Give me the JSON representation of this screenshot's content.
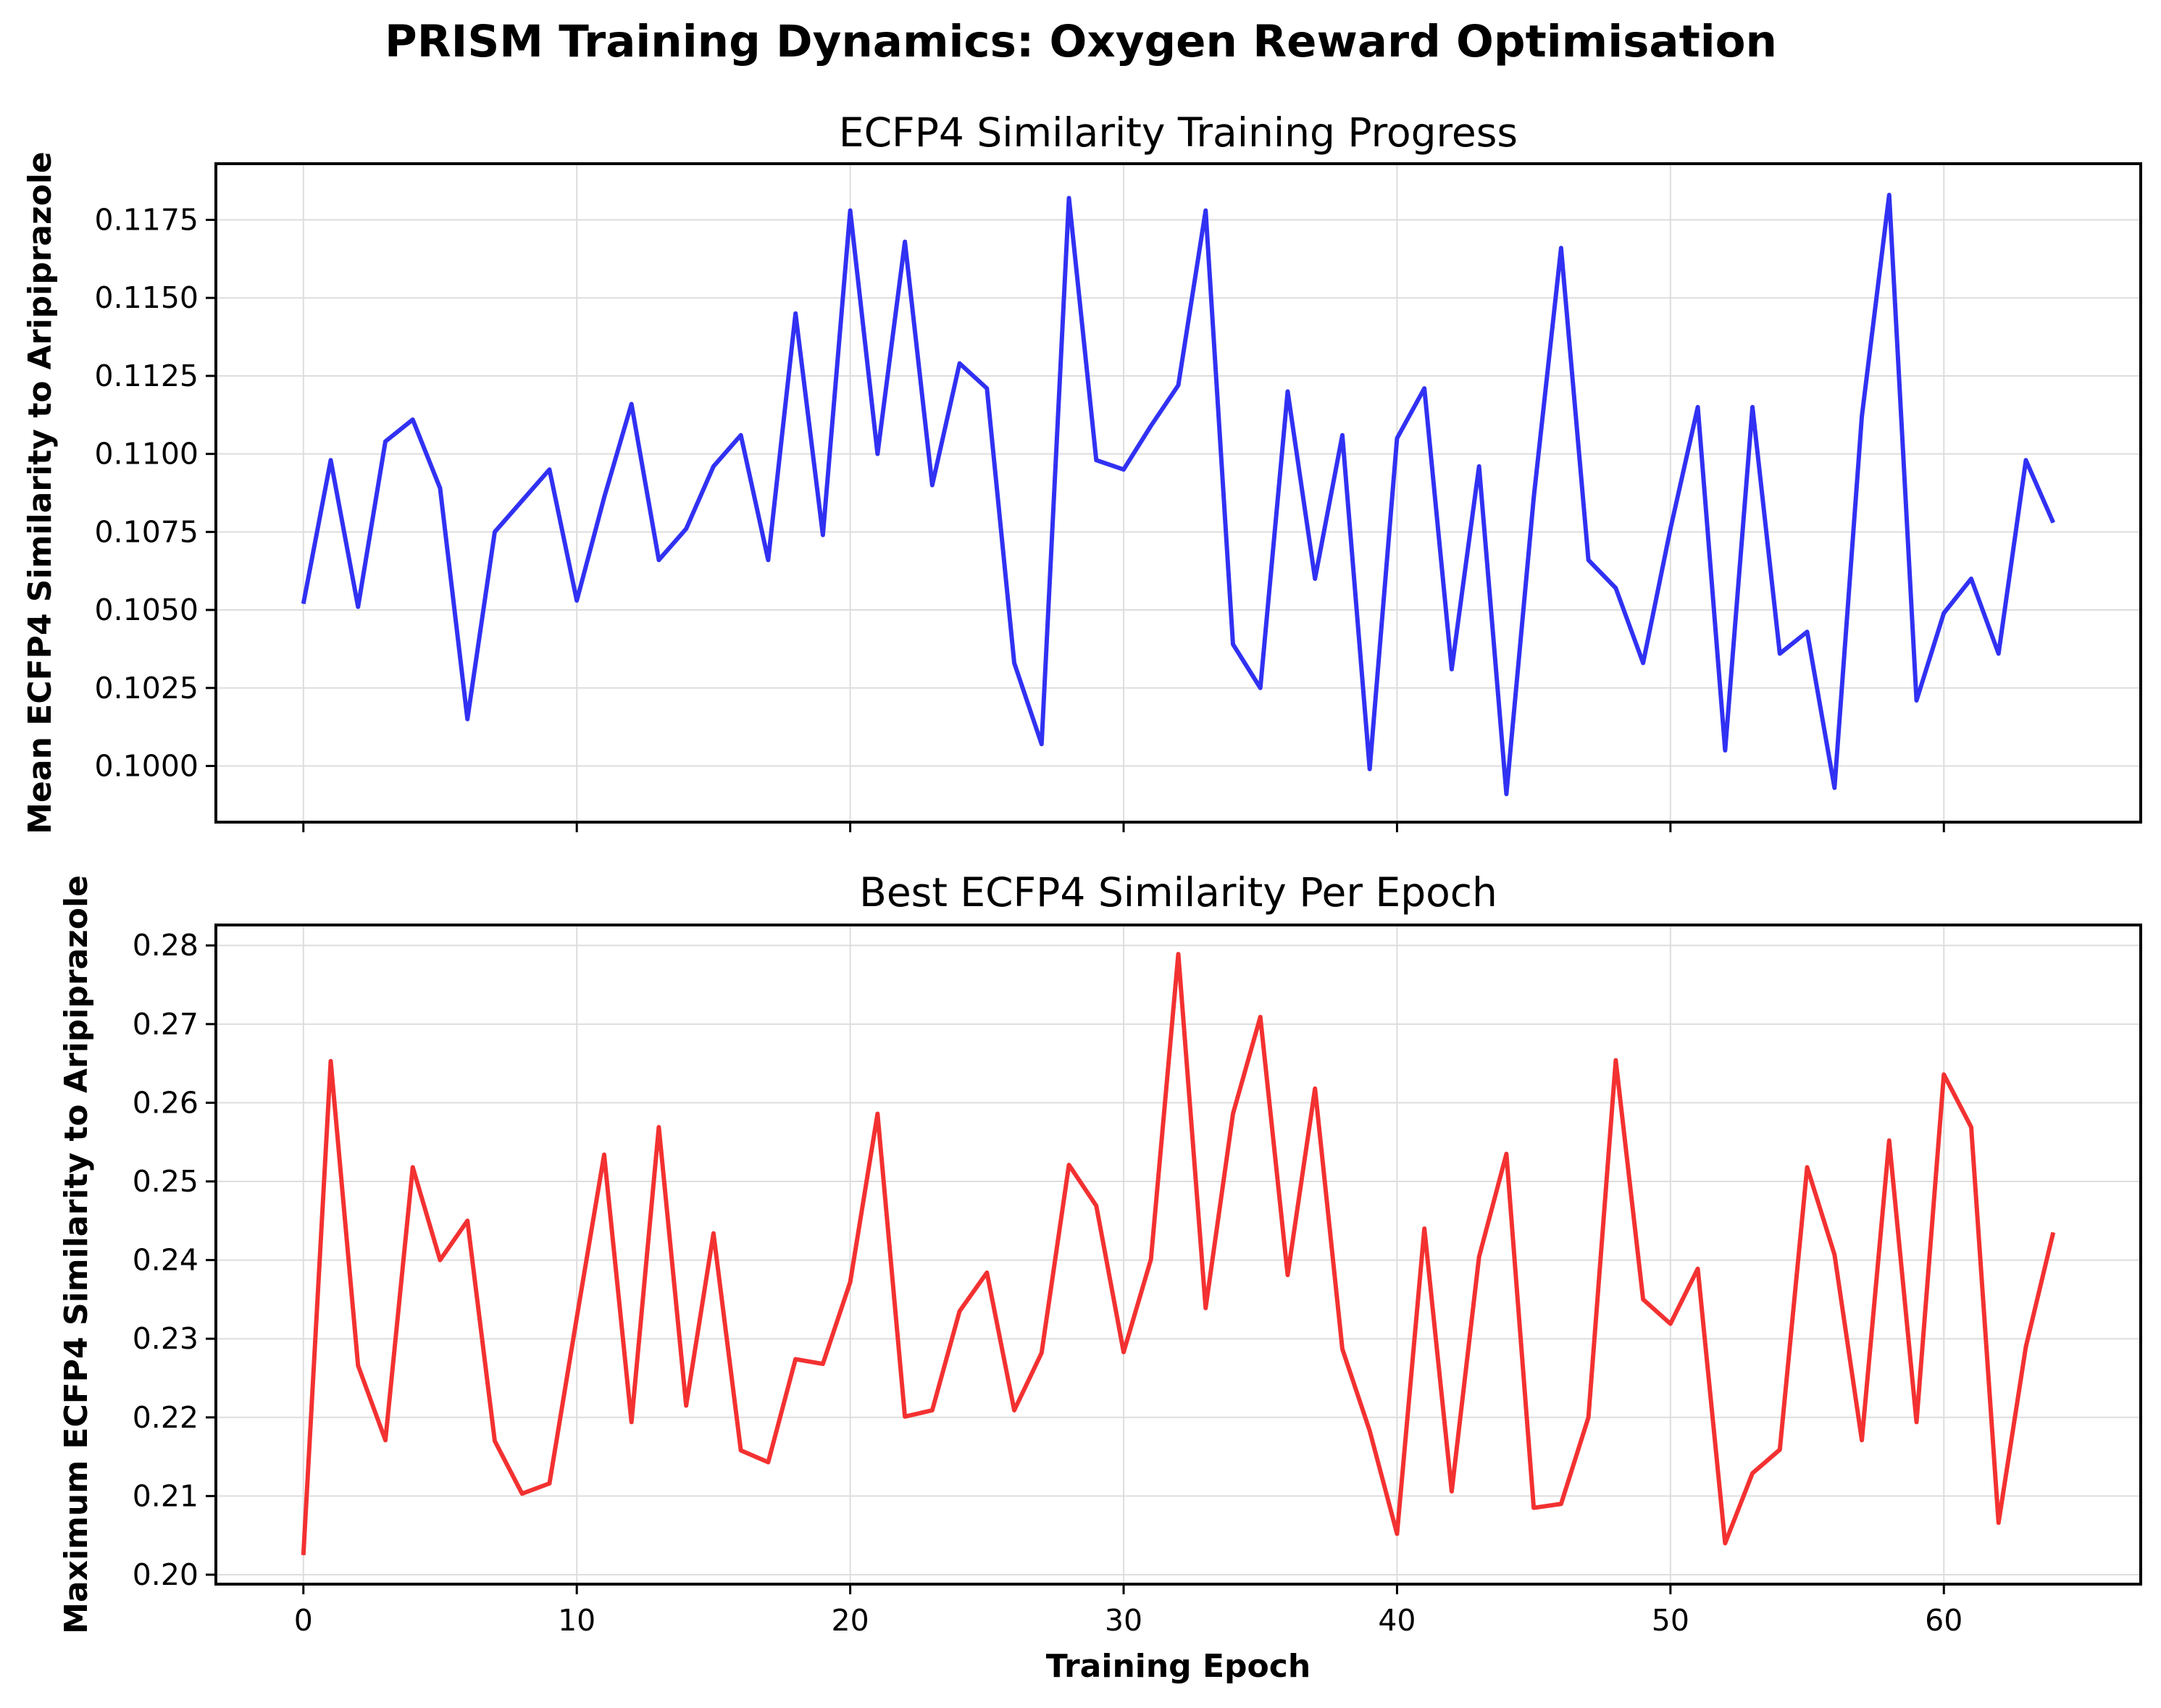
{
  "chart_data": [
    {
      "type": "line",
      "suptitle": "PRISM Training Dynamics: Oxygen Reward Optimisation",
      "title": "ECFP4 Similarity Training Progress",
      "xlabel": "",
      "ylabel": "Mean ECFP4 Similarity to Aripiprazole",
      "xlim": [
        -3.2,
        67.2
      ],
      "ylim": [
        0.0982,
        0.1193
      ],
      "xticks": [
        0,
        10,
        20,
        30,
        40,
        50,
        60
      ],
      "yticks": [
        0.1,
        0.1025,
        0.105,
        0.1075,
        0.11,
        0.1125,
        0.115,
        0.1175
      ],
      "ytick_labels": [
        "0.1000",
        "0.1025",
        "0.1050",
        "0.1075",
        "0.1100",
        "0.1125",
        "0.1150",
        "0.1175"
      ],
      "show_xtick_labels": false,
      "grid": true,
      "series": [
        {
          "name": "Mean ECFP4 Similarity",
          "color": "#2626f2",
          "x": [
            0,
            1,
            2,
            3,
            4,
            5,
            6,
            7,
            8,
            9,
            10,
            11,
            12,
            13,
            14,
            15,
            16,
            17,
            18,
            19,
            20,
            21,
            22,
            23,
            24,
            25,
            26,
            27,
            28,
            29,
            30,
            31,
            32,
            33,
            34,
            35,
            36,
            37,
            38,
            39,
            40,
            41,
            42,
            43,
            44,
            45,
            46,
            47,
            48,
            49,
            50,
            51,
            52,
            53,
            54,
            55,
            56,
            57,
            58,
            59,
            60,
            61,
            62,
            63,
            64
          ],
          "values": [
            0.1052,
            0.1098,
            0.1051,
            0.1104,
            0.1111,
            0.1089,
            0.1015,
            0.1075,
            0.1085,
            0.1095,
            0.1053,
            0.1086,
            0.1116,
            0.1066,
            0.1076,
            0.1096,
            0.1106,
            0.1066,
            0.1145,
            0.1074,
            0.1178,
            0.11,
            0.1168,
            0.109,
            0.1129,
            0.1121,
            0.1033,
            0.1007,
            0.1182,
            0.1098,
            0.1095,
            0.1109,
            0.1122,
            0.1178,
            0.1039,
            0.1025,
            0.112,
            0.106,
            0.1106,
            0.0999,
            0.1105,
            0.1121,
            0.1031,
            0.1096,
            0.0991,
            0.1086,
            0.1166,
            0.1066,
            0.1057,
            0.1033,
            0.1076,
            0.1115,
            0.1005,
            0.1115,
            0.1036,
            0.1043,
            0.0993,
            0.1112,
            0.1183,
            0.1021,
            0.1049,
            0.106,
            0.1036,
            0.1098,
            0.1078
          ]
        }
      ]
    },
    {
      "type": "line",
      "title": "Best ECFP4 Similarity Per Epoch",
      "xlabel": "Training Epoch",
      "ylabel": "Maximum ECFP4 Similarity to Aripiprazole",
      "xlim": [
        -3.2,
        67.2
      ],
      "ylim": [
        0.1988,
        0.2826
      ],
      "xticks": [
        0,
        10,
        20,
        30,
        40,
        50,
        60
      ],
      "xtick_labels": [
        "0",
        "10",
        "20",
        "30",
        "40",
        "50",
        "60"
      ],
      "yticks": [
        0.2,
        0.21,
        0.22,
        0.23,
        0.24,
        0.25,
        0.26,
        0.27,
        0.28
      ],
      "ytick_labels": [
        "0.20",
        "0.21",
        "0.22",
        "0.23",
        "0.24",
        "0.25",
        "0.26",
        "0.27",
        "0.28"
      ],
      "show_xtick_labels": true,
      "grid": true,
      "series": [
        {
          "name": "Best ECFP4 Similarity",
          "color": "#f22626",
          "x": [
            0,
            1,
            2,
            3,
            4,
            5,
            6,
            7,
            8,
            9,
            10,
            11,
            12,
            13,
            14,
            15,
            16,
            17,
            18,
            19,
            20,
            21,
            22,
            23,
            24,
            25,
            26,
            27,
            28,
            29,
            30,
            31,
            32,
            33,
            34,
            35,
            36,
            37,
            38,
            39,
            40,
            41,
            42,
            43,
            44,
            45,
            46,
            47,
            48,
            49,
            50,
            51,
            52,
            53,
            54,
            55,
            56,
            57,
            58,
            59,
            60,
            61,
            62,
            63,
            64
          ],
          "values": [
            0.2025,
            0.2653,
            0.2266,
            0.2171,
            0.2518,
            0.24,
            0.245,
            0.217,
            0.2103,
            0.2116,
            0.2327,
            0.2534,
            0.2194,
            0.2569,
            0.2215,
            0.2434,
            0.2158,
            0.2143,
            0.2274,
            0.2268,
            0.2372,
            0.2586,
            0.2201,
            0.2209,
            0.2335,
            0.2384,
            0.2209,
            0.2282,
            0.2521,
            0.2469,
            0.2283,
            0.2401,
            0.2789,
            0.2339,
            0.2586,
            0.2709,
            0.2381,
            0.2618,
            0.2287,
            0.2183,
            0.2052,
            0.244,
            0.2106,
            0.2404,
            0.2535,
            0.2085,
            0.209,
            0.22,
            0.2654,
            0.235,
            0.2319,
            0.2389,
            0.204,
            0.2129,
            0.2159,
            0.2518,
            0.2407,
            0.2171,
            0.2552,
            0.2194,
            0.2636,
            0.2569,
            0.2066,
            0.229,
            0.2435
          ]
        }
      ]
    }
  ]
}
